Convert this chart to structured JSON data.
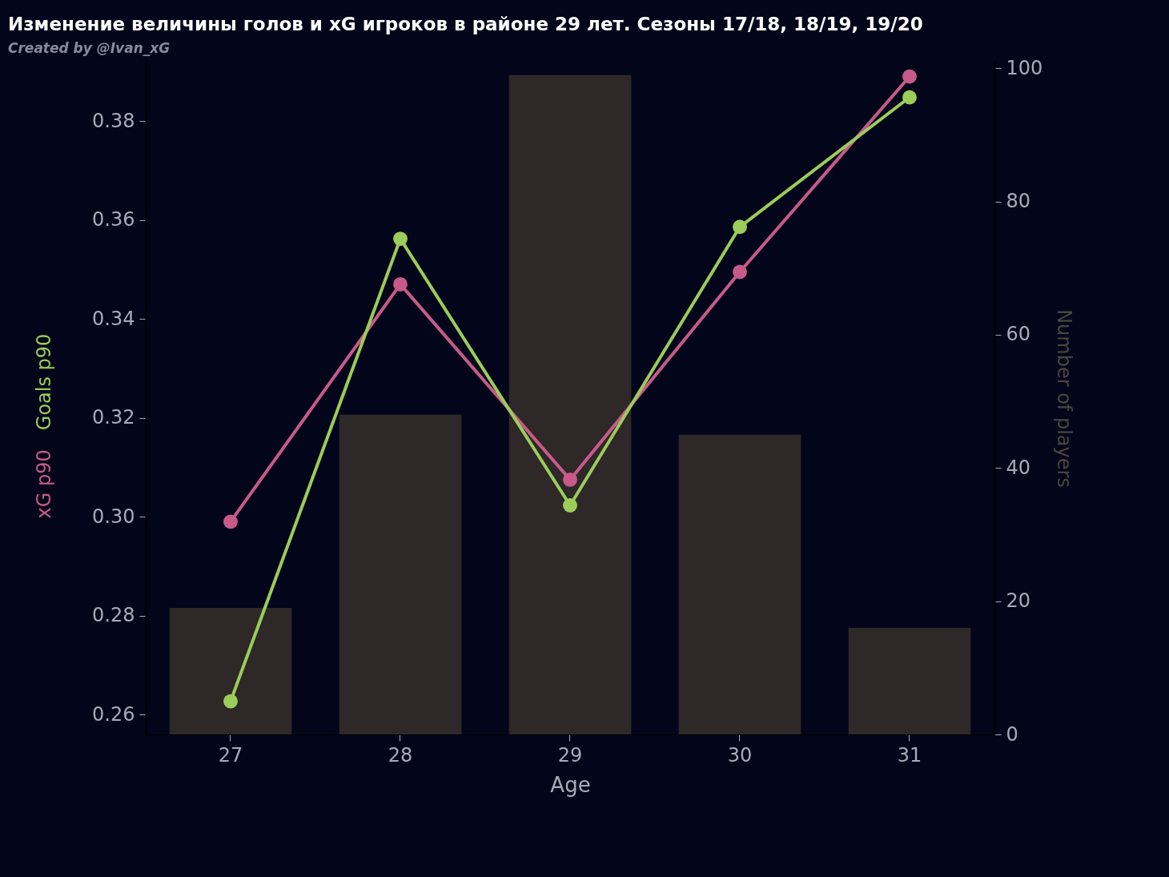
{
  "chart_data": {
    "type": "line",
    "title": "Изменение величины голов и xG игроков в районе 29 лет. Сезоны 17/18, 18/19, 19/20",
    "annotations": [
      "Created by @Ivan_xG"
    ],
    "xlabel": "Age",
    "y2label": "Number of players",
    "categories": [
      "27",
      "28",
      "29",
      "30",
      "31"
    ],
    "series": [
      {
        "type": "bar",
        "axis": "y2",
        "color": "#2e2828",
        "values": [
          19,
          48,
          99,
          45,
          16
        ]
      },
      {
        "name": "xG p90",
        "color": "#c85a8a",
        "values": [
          0.299,
          0.347,
          0.3075,
          0.3495,
          0.389
        ]
      },
      {
        "name": "Goals p90",
        "color": "#9ccc5a",
        "values": [
          0.2627,
          0.3562,
          0.3023,
          0.3586,
          0.3848
        ]
      }
    ],
    "ylim": [
      0.256,
      0.392
    ],
    "yticks": [
      0.26,
      0.28,
      {
        "value": 0.3,
        "label": "0.30"
      },
      0.32,
      0.34,
      0.36,
      0.38
    ],
    "y2lim": [
      0,
      101
    ],
    "y2ticks": [
      0,
      20,
      40,
      60,
      80,
      100
    ],
    "marker": "circle",
    "line_style": "solid",
    "grid": false,
    "legend": false
  }
}
